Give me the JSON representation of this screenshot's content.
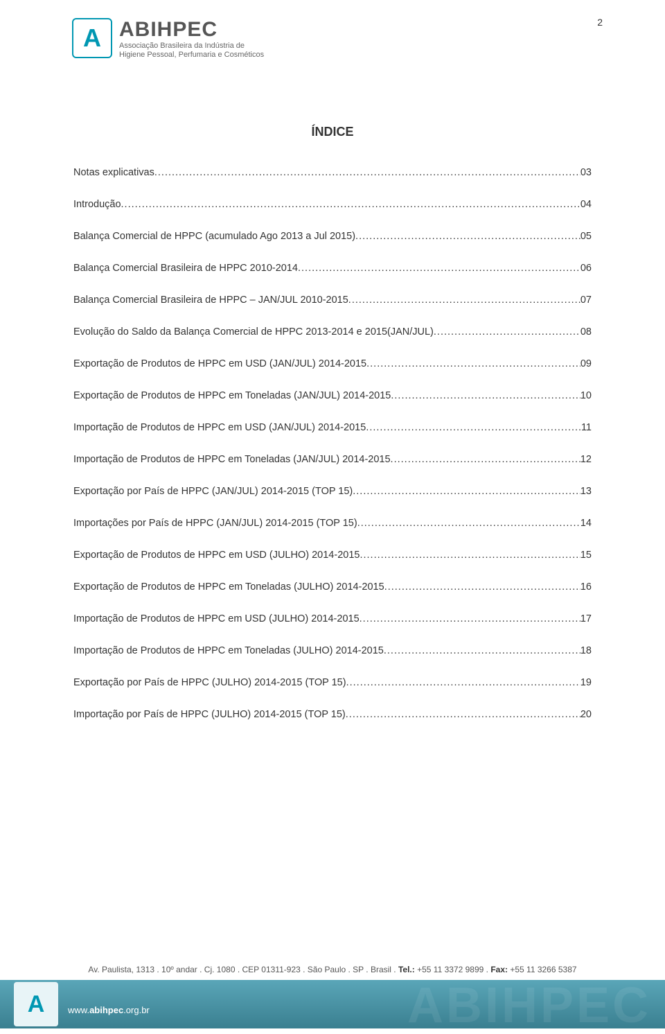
{
  "page_number": "2",
  "logo": {
    "mark_letter": "A",
    "brand": "ABIHPEC",
    "tagline_line1": "Associação Brasileira da Indústria de",
    "tagline_line2": "Higiene Pessoal, Perfumaria e Cosméticos"
  },
  "title": "ÍNDICE",
  "toc": [
    {
      "label": "Notas explicativas",
      "page": "03"
    },
    {
      "label": "Introdução",
      "page": "04"
    },
    {
      "label": "Balança Comercial de HPPC (acumulado Ago 2013 a Jul 2015)",
      "page": "05"
    },
    {
      "label": "Balança Comercial Brasileira de HPPC 2010-2014",
      "page": "06"
    },
    {
      "label": "Balança Comercial Brasileira de HPPC – JAN/JUL 2010-2015",
      "page": "07"
    },
    {
      "label": "Evolução do Saldo da Balança Comercial de HPPC 2013-2014 e 2015(JAN/JUL)",
      "page": "08"
    },
    {
      "label": "Exportação de Produtos de HPPC em USD (JAN/JUL) 2014-2015",
      "page": "09"
    },
    {
      "label": "Exportação de Produtos de HPPC em Toneladas (JAN/JUL) 2014-2015",
      "page": "10"
    },
    {
      "label": "Importação de Produtos de HPPC em USD (JAN/JUL) 2014-2015",
      "page": "11"
    },
    {
      "label": "Importação de Produtos de HPPC em Toneladas (JAN/JUL) 2014-2015",
      "page": "12"
    },
    {
      "label": "Exportação por País de HPPC (JAN/JUL) 2014-2015 (TOP 15)",
      "page": "13"
    },
    {
      "label": "Importações por País de HPPC (JAN/JUL) 2014-2015 (TOP 15)",
      "page": "14"
    },
    {
      "label": "Exportação de Produtos de HPPC em USD (JULHO) 2014-2015",
      "page": "15"
    },
    {
      "label": "Exportação de Produtos de HPPC em Toneladas (JULHO) 2014-2015",
      "page": "16"
    },
    {
      "label": "Importação de Produtos de HPPC em USD (JULHO) 2014-2015",
      "page": "17"
    },
    {
      "label": "Importação de Produtos de HPPC em Toneladas (JULHO) 2014-2015",
      "page": "18"
    },
    {
      "label": "Exportação por País de HPPC (JULHO) 2014-2015 (TOP 15)",
      "page": "19"
    },
    {
      "label": "Importação por País de HPPC (JULHO) 2014-2015 (TOP 15)",
      "page": "20"
    }
  ],
  "footer": {
    "address_prefix": "Av. Paulista, 1313 . 10º andar . Cj. 1080 . CEP 01311-923 . São Paulo . SP . Brasil . ",
    "tel_label": "Tel.:",
    "tel_value": " +55 11 3372 9899 . ",
    "fax_label": "Fax:",
    "fax_value": " +55 11 3266 5387",
    "url_prefix": "www.",
    "url_bold": "abihpec",
    "url_suffix": ".org.br",
    "mark_letter": "A",
    "watermark": "ABIHPEC"
  },
  "colors": {
    "brand_teal": "#0097b2",
    "text": "#333333",
    "footer_grad_top": "#5aa6b8",
    "footer_grad_bottom": "#3a7f90"
  }
}
